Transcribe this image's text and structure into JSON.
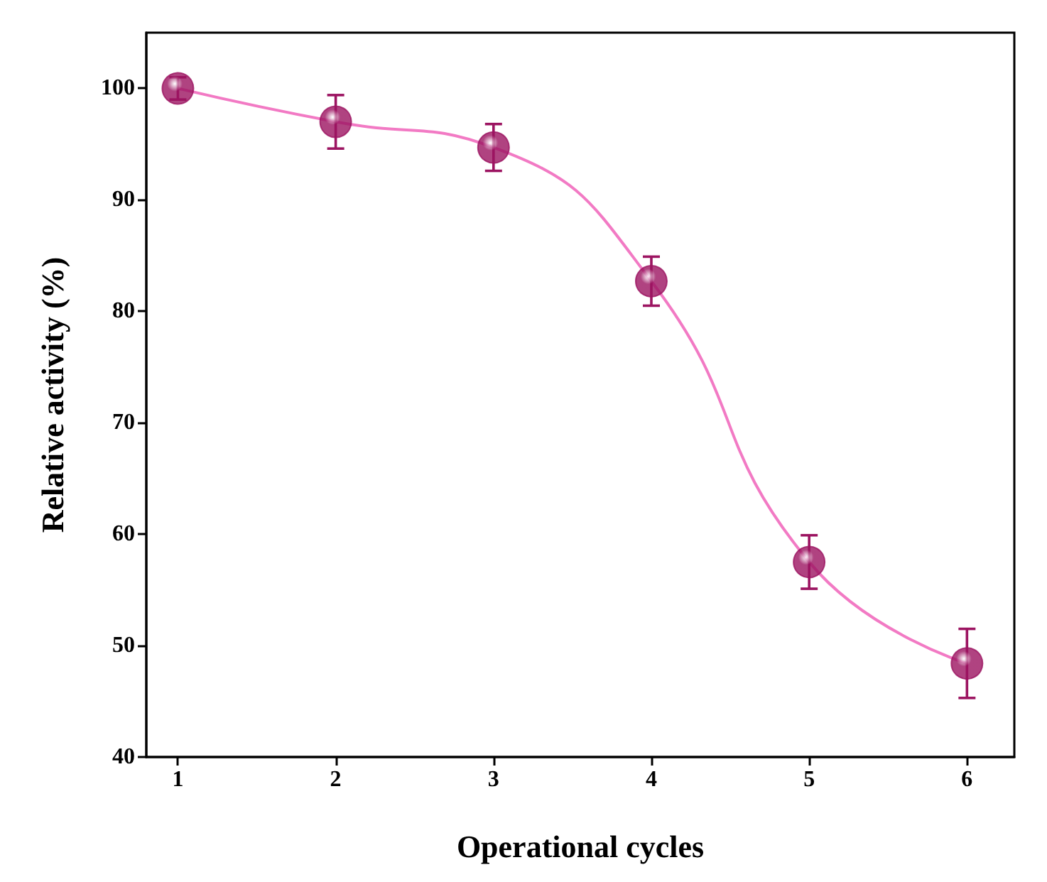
{
  "chart_data": {
    "type": "scatter",
    "xlabel": "Operational cycles",
    "ylabel": "Relative activity (%)",
    "x": [
      1,
      2,
      3,
      4,
      5,
      6
    ],
    "series": [
      {
        "type": "scatter",
        "color": "#9c1461",
        "values": [
          100,
          97.0,
          94.7,
          82.7,
          57.5,
          48.4
        ],
        "errors": [
          1,
          2.4,
          2.1,
          2.2,
          2.4,
          3.1
        ],
        "marker": "circle"
      },
      {
        "type": "line",
        "color": "#f27ac4",
        "values": [
          100,
          97.0,
          94.7,
          82.7,
          57.5,
          48.4
        ],
        "marker": "none",
        "line_style": "solid"
      }
    ],
    "xlim": [
      0.8,
      6.3
    ],
    "xticks": [
      1,
      2,
      3,
      4,
      5,
      6
    ],
    "ylim": [
      40,
      105
    ],
    "yticks": [
      40,
      50,
      60,
      70,
      80,
      90,
      100
    ],
    "grid": false
  }
}
